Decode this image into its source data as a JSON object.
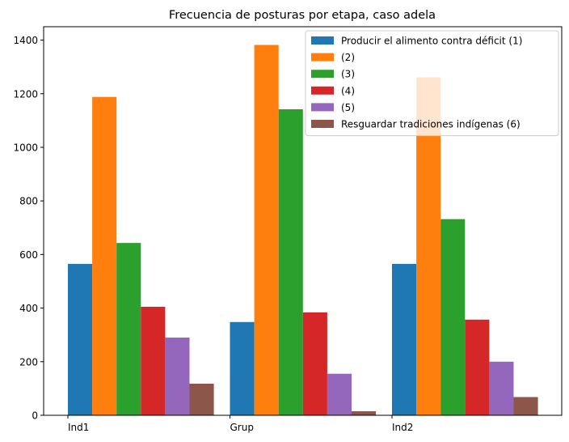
{
  "chart_data": {
    "type": "bar",
    "title": "Frecuencia de posturas por etapa, caso adela",
    "xlabel": "",
    "ylabel": "",
    "categories": [
      "Ind1",
      "Grup",
      "Ind2"
    ],
    "ylim": [
      0,
      1450
    ],
    "yticks": [
      0,
      200,
      400,
      600,
      800,
      1000,
      1200,
      1400
    ],
    "grid": false,
    "legend_position": "top-right",
    "series": [
      {
        "name": "Producir el alimento contra déficit (1)",
        "color": "#1f77b4",
        "values": [
          565,
          348,
          565
        ]
      },
      {
        "name": "(2)",
        "color": "#ff7f0e",
        "values": [
          1188,
          1382,
          1261
        ]
      },
      {
        "name": "(3)",
        "color": "#2ca02c",
        "values": [
          643,
          1142,
          732
        ]
      },
      {
        "name": "(4)",
        "color": "#d62728",
        "values": [
          405,
          384,
          357
        ]
      },
      {
        "name": "(5)",
        "color": "#9467bd",
        "values": [
          290,
          155,
          200
        ]
      },
      {
        "name": "Resguardar tradiciones indígenas (6)",
        "color": "#8c564b",
        "values": [
          118,
          15,
          68
        ]
      }
    ]
  }
}
